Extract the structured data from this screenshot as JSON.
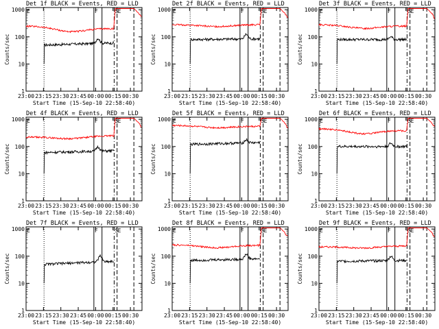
{
  "page": {
    "background": "#ffffff",
    "plot_background": "#ffffff"
  },
  "colors": {
    "events": "#000000",
    "lld": "#ff0000",
    "axes": "#000000"
  },
  "common": {
    "xlabel": "Start Time (15-Sep-10 22:58:40)",
    "ylabel": "Counts/sec",
    "x_ticks": [
      "23:00",
      "23:15",
      "23:30",
      "23:45",
      "00:00",
      "00:15",
      "00:30"
    ],
    "x_tick_minutes": [
      0,
      15,
      30,
      45,
      60,
      75,
      90
    ],
    "x_range_minutes": [
      0,
      100
    ],
    "y_ticks": [
      "1",
      "10",
      "100",
      "1000"
    ],
    "y_tick_values": [
      1,
      10,
      100,
      1000
    ],
    "y_range": [
      1,
      1200
    ],
    "y_scale": "log",
    "markers": [
      {
        "minute": 15.5,
        "style": "dotted"
      },
      {
        "minute": 58.5,
        "style": "solid",
        "label": "F"
      },
      {
        "minute": 65.5,
        "style": "solid"
      },
      {
        "minute": 76,
        "style": "dashdot",
        "label": "S"
      },
      {
        "minute": 78.5,
        "style": "dashed",
        "label": "E"
      },
      {
        "minute": 93,
        "style": "dashed"
      }
    ]
  },
  "chart_data": [
    {
      "type": "line",
      "title": "Det 1f BLACK = Events, RED = LLD",
      "y_scale": "log",
      "series": [
        {
          "name": "Events",
          "start_minute": 15.5,
          "end_minute": 76,
          "base": 50,
          "end_base": 60,
          "bump_minute": 62,
          "bump": 80
        },
        {
          "name": "LLD",
          "start_minute": 0,
          "end_minute": 76,
          "base": 250,
          "end_base": 200,
          "dip": 180
        }
      ]
    },
    {
      "type": "line",
      "title": "Det 2f BLACK = Events, RED = LLD",
      "y_scale": "log",
      "series": [
        {
          "name": "Events",
          "start_minute": 15.5,
          "end_minute": 76,
          "base": 80,
          "end_base": 85,
          "bump_minute": 64,
          "bump": 120
        },
        {
          "name": "LLD",
          "start_minute": 0,
          "end_minute": 76,
          "base": 280,
          "end_base": 280,
          "dip": 240
        }
      ]
    },
    {
      "type": "line",
      "title": "Det 3f BLACK = Events, RED = LLD",
      "y_scale": "log",
      "series": [
        {
          "name": "Events",
          "start_minute": 15.5,
          "end_minute": 76,
          "base": 80,
          "end_base": 80,
          "bump_minute": 62,
          "bump": 100
        },
        {
          "name": "LLD",
          "start_minute": 0,
          "end_minute": 76,
          "base": 280,
          "end_base": 250,
          "dip": 220
        }
      ]
    },
    {
      "type": "line",
      "title": "Det 4f BLACK = Events, RED = LLD",
      "y_scale": "log",
      "series": [
        {
          "name": "Events",
          "start_minute": 15.5,
          "end_minute": 76,
          "base": 60,
          "end_base": 70,
          "bump_minute": 62,
          "bump": 90
        },
        {
          "name": "LLD",
          "start_minute": 0,
          "end_minute": 76,
          "base": 220,
          "end_base": 250,
          "dip": 180
        }
      ]
    },
    {
      "type": "line",
      "title": "Det 5f BLACK = Events, RED = LLD",
      "y_scale": "log",
      "series": [
        {
          "name": "Events",
          "start_minute": 15.5,
          "end_minute": 76,
          "base": 120,
          "end_base": 140,
          "bump_minute": 64,
          "bump": 160
        },
        {
          "name": "LLD",
          "start_minute": 0,
          "end_minute": 76,
          "base": 600,
          "end_base": 550,
          "dip": 520
        }
      ]
    },
    {
      "type": "line",
      "title": "Det 6f BLACK = Events, RED = LLD",
      "y_scale": "log",
      "series": [
        {
          "name": "Events",
          "start_minute": 15.5,
          "end_minute": 76,
          "base": 100,
          "end_base": 100,
          "bump_minute": 62,
          "bump": 130
        },
        {
          "name": "LLD",
          "start_minute": 0,
          "end_minute": 76,
          "base": 450,
          "end_base": 380,
          "dip": 330
        }
      ]
    },
    {
      "type": "line",
      "title": "Det 7f BLACK = Events, RED = LLD",
      "y_scale": "log",
      "series": [
        {
          "name": "Events",
          "start_minute": 15.5,
          "end_minute": 76,
          "base": 50,
          "end_base": 65,
          "bump_minute": 64,
          "bump": 90
        }
      ]
    },
    {
      "type": "line",
      "title": "Det 8f BLACK = Events, RED = LLD",
      "y_scale": "log",
      "series": [
        {
          "name": "Events",
          "start_minute": 15.5,
          "end_minute": 76,
          "base": 70,
          "end_base": 80,
          "bump_minute": 64,
          "bump": 110
        },
        {
          "name": "LLD",
          "start_minute": 0,
          "end_minute": 76,
          "base": 260,
          "end_base": 250,
          "dip": 210
        }
      ]
    },
    {
      "type": "line",
      "title": "Det 9f BLACK = Events, RED = LLD",
      "y_scale": "log",
      "series": [
        {
          "name": "Events",
          "start_minute": 15.5,
          "end_minute": 76,
          "base": 65,
          "end_base": 70,
          "bump_minute": 62,
          "bump": 95
        },
        {
          "name": "LLD",
          "start_minute": 0,
          "end_minute": 76,
          "base": 220,
          "end_base": 240,
          "dip": 190
        }
      ]
    }
  ]
}
